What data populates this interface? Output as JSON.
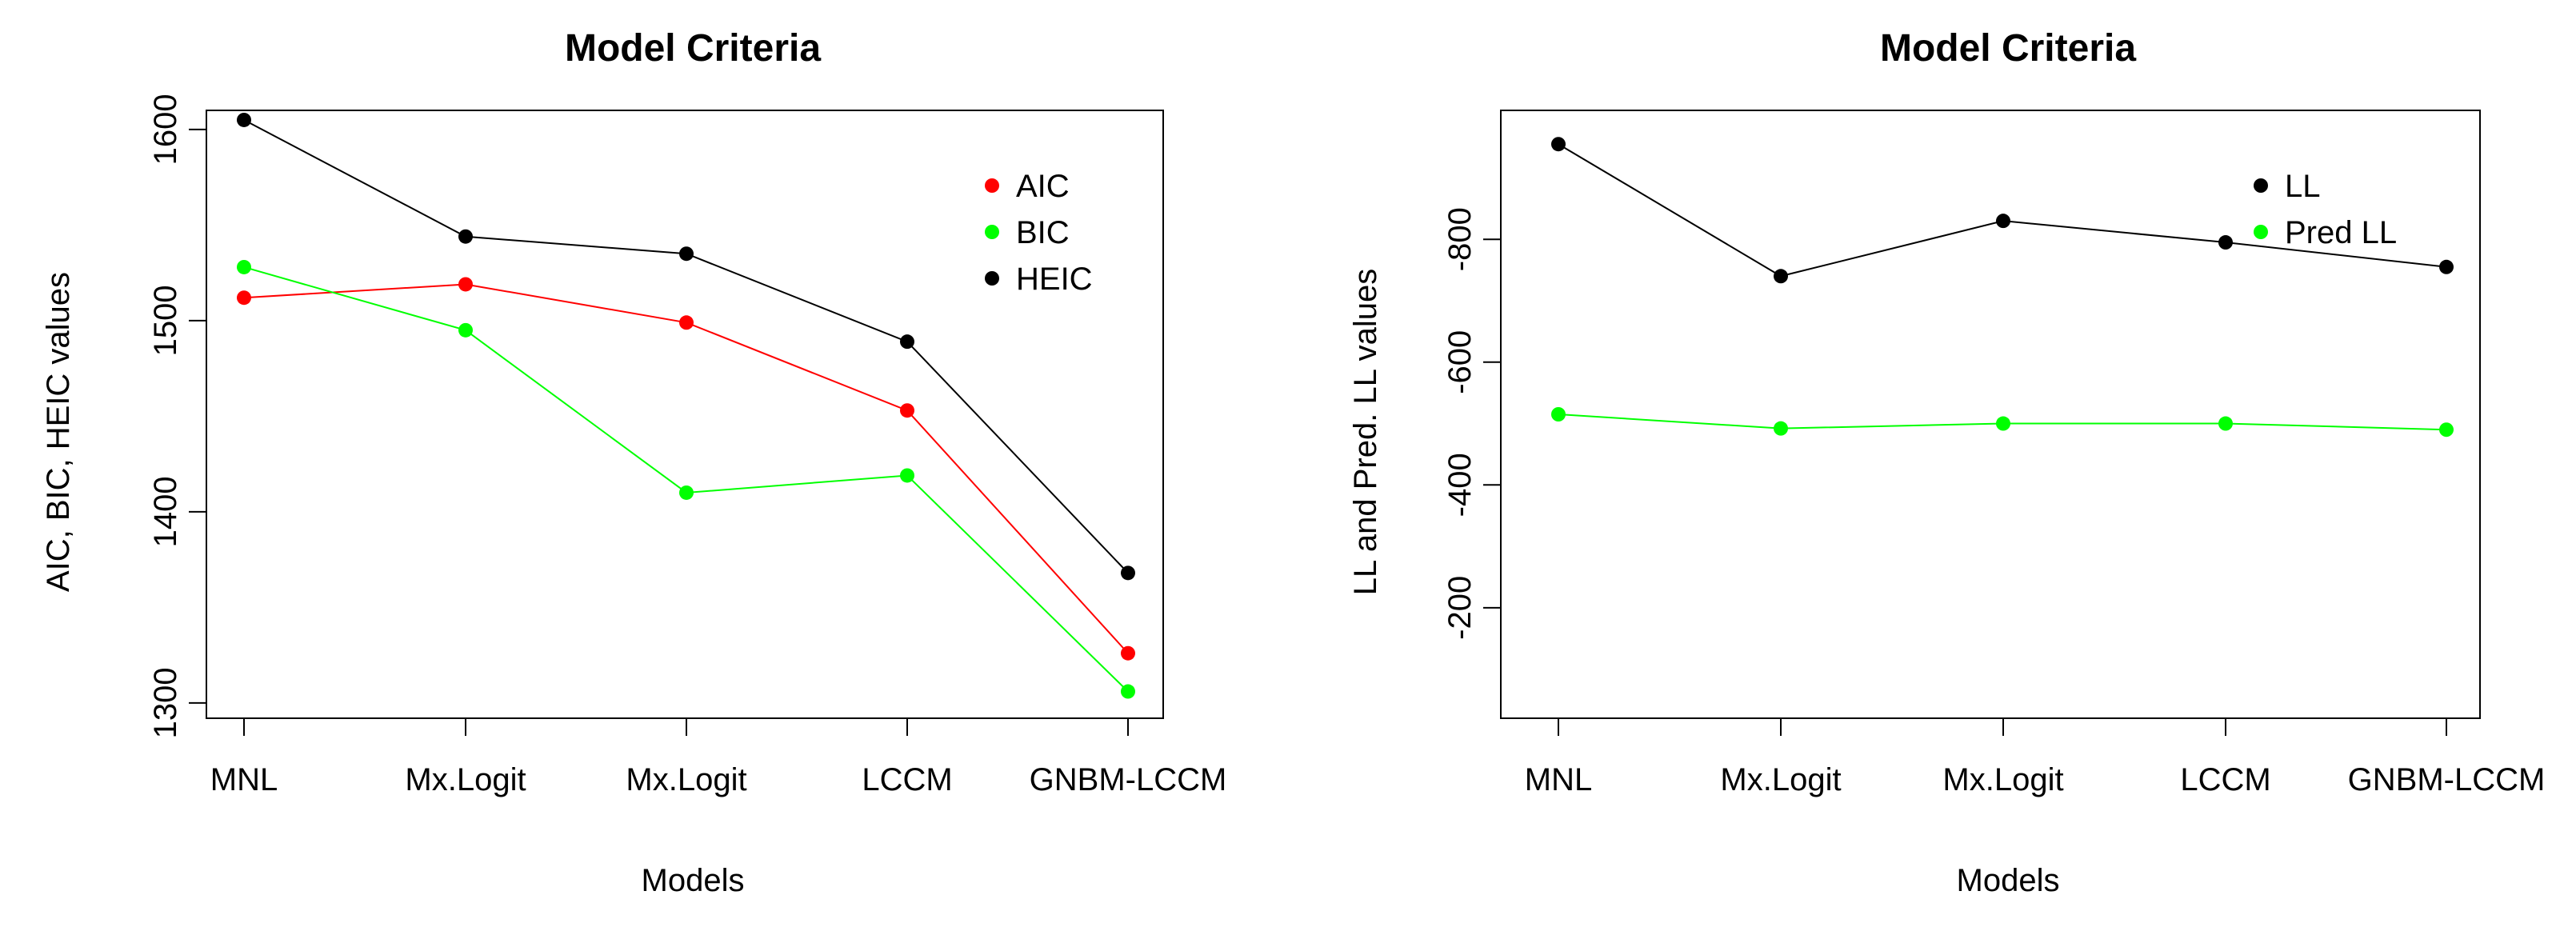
{
  "chart_data": [
    {
      "type": "line",
      "title": "Model Criteria",
      "xlabel": "Models",
      "ylabel": "AIC, BIC, HEIC values",
      "categories": [
        "MNL",
        "Mx.Logit",
        "Mx.Logit",
        "LCCM",
        "GNBM-LCCM"
      ],
      "ylim": [
        1292,
        1610
      ],
      "yticks": [
        1300,
        1400,
        1500,
        1600
      ],
      "ytick_labels": [
        "1300",
        "1400",
        "1500",
        "1600"
      ],
      "series": [
        {
          "name": "AIC",
          "color": "#ff0000",
          "values": [
            1512,
            1519,
            1499,
            1453,
            1326
          ]
        },
        {
          "name": "BIC",
          "color": "#00ff00",
          "values": [
            1528,
            1495,
            1410,
            1419,
            1306
          ]
        },
        {
          "name": "HEIC",
          "color": "#000000",
          "values": [
            1605,
            1544,
            1535,
            1489,
            1368
          ]
        }
      ],
      "legend_position": "top-right",
      "grid": false
    },
    {
      "type": "line",
      "title": "Model Criteria",
      "xlabel": "Models",
      "ylabel": "LL and Pred. LL values",
      "categories": [
        "MNL",
        "Mx.Logit",
        "Mx.Logit",
        "LCCM",
        "GNBM-LCCM"
      ],
      "ylim": [
        -20,
        -1010
      ],
      "yticks": [
        -200,
        -400,
        -600,
        -800
      ],
      "ytick_labels": [
        "-200",
        "-400",
        "-600",
        "-800"
      ],
      "series": [
        {
          "name": "LL",
          "color": "#000000",
          "values": [
            -955,
            -740,
            -830,
            -795,
            -755
          ]
        },
        {
          "name": "Pred LL",
          "color": "#00ff00",
          "values": [
            -515,
            -492,
            -500,
            -500,
            -490
          ]
        }
      ],
      "legend_position": "top-right",
      "grid": false
    }
  ]
}
